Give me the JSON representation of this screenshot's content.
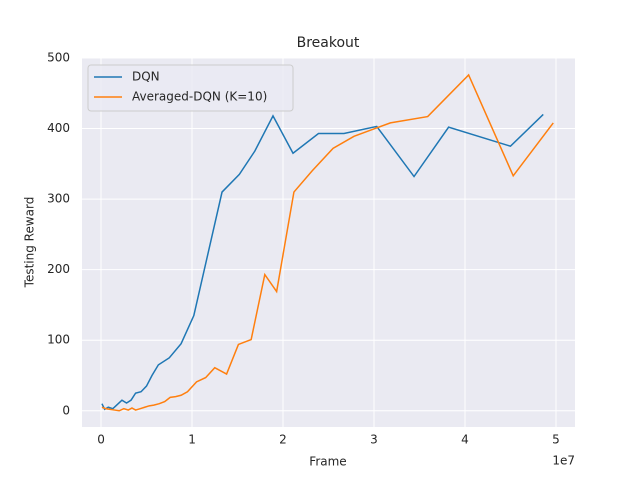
{
  "chart_data": {
    "type": "line",
    "title": "Breakout",
    "x_label": "Frame",
    "y_label": "Testing Reward",
    "x_offset_label": "1e7",
    "xlim": [
      -2090000,
      52090000
    ],
    "ylim": [
      -23,
      500
    ],
    "xticks": [
      0,
      {
        "value": 10000000,
        "label": "1"
      },
      {
        "value": 20000000,
        "label": "2"
      },
      {
        "value": 30000000,
        "label": "3"
      },
      {
        "value": 40000000,
        "label": "4"
      },
      {
        "value": 50000000,
        "label": "5"
      }
    ],
    "yticks": [
      0,
      100,
      200,
      300,
      400,
      500
    ],
    "grid": true,
    "legend": "upper left",
    "series": [
      {
        "name": "DQN",
        "color": "#1f77b4",
        "x": [
          100000,
          400000,
          800000,
          1300000,
          1800000,
          2300000,
          2800000,
          3300000,
          3800000,
          4400000,
          5000000,
          5600000,
          6300000,
          7500000,
          8800000,
          10200000,
          13300000,
          15200000,
          16900000,
          18900000,
          21100000,
          23900000,
          26700000,
          30300000,
          34400000,
          38200000,
          45000000,
          48600000
        ],
        "values": [
          10,
          2,
          5,
          3,
          9,
          15,
          11,
          15,
          25,
          27,
          35,
          50,
          65,
          75,
          95,
          135,
          310,
          335,
          368,
          418,
          365,
          393,
          393,
          403,
          332,
          402,
          375,
          420
        ]
      },
      {
        "name": "Averaged-DQN (K=10)",
        "color": "#ff7f0e",
        "x": [
          100000,
          500000,
          1000000,
          1500000,
          2000000,
          2500000,
          3000000,
          3400000,
          3800000,
          4300000,
          4800000,
          5300000,
          5800000,
          6400000,
          7000000,
          7600000,
          8200000,
          8800000,
          9500000,
          10500000,
          11500000,
          12500000,
          13800000,
          15100000,
          16500000,
          18000000,
          19300000,
          21200000,
          23200000,
          25500000,
          27800000,
          30100000,
          31800000,
          35900000,
          40400000,
          45300000,
          49700000
        ],
        "values": [
          5,
          3,
          2,
          1,
          0,
          3,
          1,
          4,
          1,
          3,
          5,
          7,
          8,
          10,
          13,
          19,
          20,
          22,
          27,
          41,
          47,
          61,
          52,
          94,
          101,
          193,
          169,
          310,
          340,
          372,
          389,
          400,
          408,
          417,
          476,
          333,
          408
        ]
      }
    ]
  }
}
